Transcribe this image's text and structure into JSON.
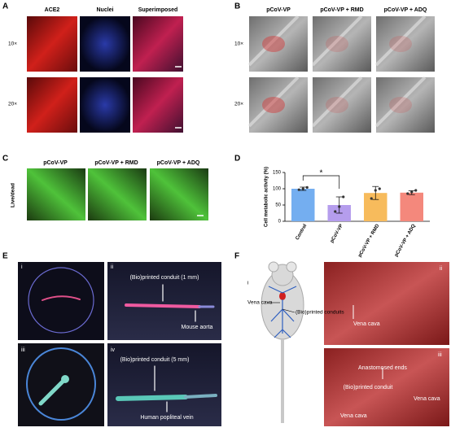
{
  "panels": {
    "A": {
      "label": "A",
      "columns": [
        "ACE2",
        "Nuclei",
        "Superimposed"
      ],
      "rows": [
        "10×",
        "20×"
      ]
    },
    "B": {
      "label": "B",
      "columns": [
        "pCoV-VP",
        "pCoV-VP + RMD",
        "pCoV-VP + ADQ"
      ],
      "rows": [
        "10×",
        "20×"
      ]
    },
    "C": {
      "label": "C",
      "columns": [
        "pCoV-VP",
        "pCoV-VP + RMD",
        "pCoV-VP + ADQ"
      ],
      "row": "Live/dead"
    },
    "D": {
      "label": "D"
    },
    "E": {
      "label": "E",
      "sub": [
        {
          "label": "i"
        },
        {
          "label": "ii",
          "texts": [
            "(Bio)printed conduit (1 mm)",
            "Mouse aorta"
          ]
        },
        {
          "label": "iii"
        },
        {
          "label": "iv",
          "texts": [
            "(Bio)printed conduit (5 mm)",
            "Human popliteal vein"
          ]
        }
      ]
    },
    "F": {
      "label": "F",
      "sub": [
        {
          "label": "i",
          "texts": [
            "Vena cava",
            "(Bio)printed conduits"
          ]
        },
        {
          "label": "ii",
          "texts": [
            "Vena cava"
          ]
        },
        {
          "label": "iii",
          "texts": [
            "Anastomosed ends",
            "Vena cava",
            "(Bio)printed conduit",
            "Vena cava"
          ]
        }
      ]
    }
  },
  "chart_data": {
    "type": "bar",
    "y_label": "Cell metabolic activity (%)",
    "categories": [
      "Control",
      "pCoV-VP",
      "pCoV-VP + RMD",
      "pCoV-VP + ADQ"
    ],
    "values": [
      100,
      50,
      87,
      88
    ],
    "errors": [
      5,
      25,
      20,
      6
    ],
    "points": [
      [
        97,
        100,
        104
      ],
      [
        30,
        45,
        75
      ],
      [
        70,
        95,
        100
      ],
      [
        85,
        90,
        95
      ]
    ],
    "colors": [
      "#74aef0",
      "#b59ded",
      "#f7bb5c",
      "#f4887c"
    ],
    "ylim": [
      0,
      150
    ],
    "yticks": [
      0,
      50,
      100,
      150
    ],
    "annotation": "*"
  }
}
